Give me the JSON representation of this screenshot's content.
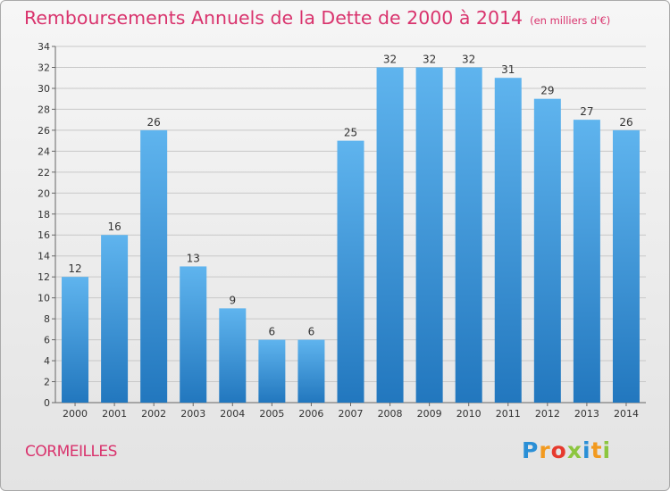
{
  "header": {
    "title": "Remboursements Annuels de la Dette de 2000 à 2014",
    "unit": "(en milliers d'€)"
  },
  "footer": {
    "city": "CORMEILLES",
    "logo_letters": [
      "P",
      "r",
      "o",
      "x",
      "i",
      "t",
      "i"
    ]
  },
  "colors": {
    "title": "#d9336d",
    "bar_top": "#5fb4ee",
    "bar_bottom": "#2277be",
    "grid": "#c8c8c8"
  },
  "chart_data": {
    "type": "bar",
    "title": "Remboursements Annuels de la Dette de 2000 à 2014",
    "subtitle": "(en milliers d'€)",
    "xlabel": "",
    "ylabel": "",
    "categories": [
      "2000",
      "2001",
      "2002",
      "2003",
      "2004",
      "2005",
      "2006",
      "2007",
      "2008",
      "2009",
      "2010",
      "2011",
      "2012",
      "2013",
      "2014"
    ],
    "values": [
      12,
      16,
      26,
      13,
      9,
      6,
      6,
      25,
      32,
      32,
      32,
      31,
      29,
      27,
      26
    ],
    "ylim": [
      0,
      34
    ],
    "yticks": [
      0,
      2,
      4,
      6,
      8,
      10,
      12,
      14,
      16,
      18,
      20,
      22,
      24,
      26,
      28,
      30,
      32,
      34
    ],
    "grid": true,
    "data_labels": true
  }
}
